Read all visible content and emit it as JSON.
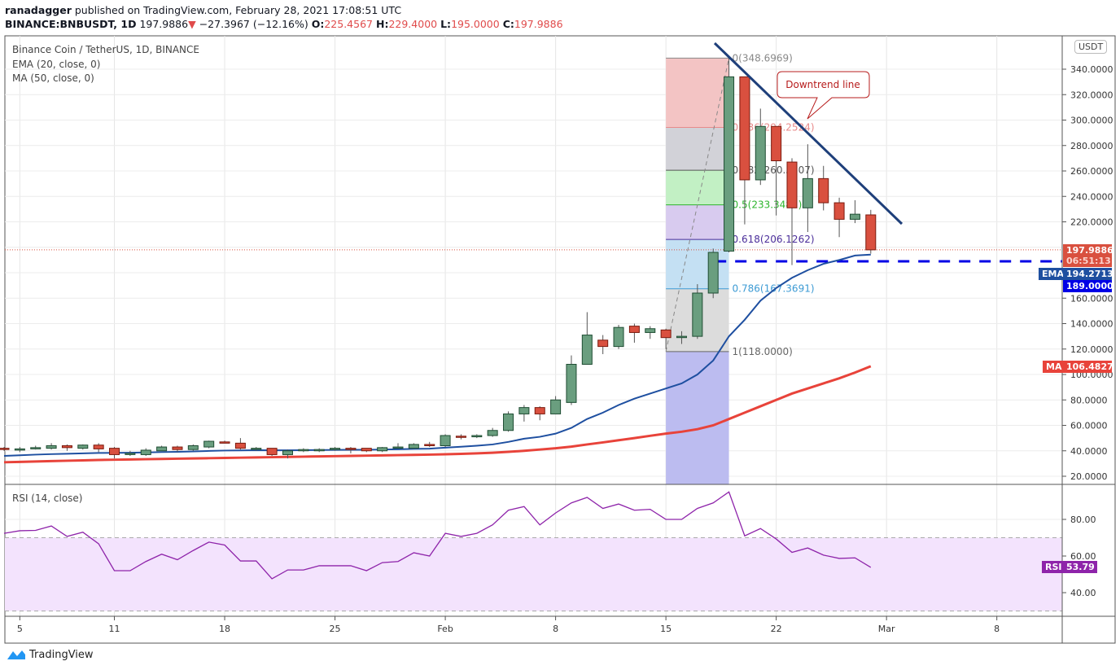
{
  "header": {
    "author": "ranadagger",
    "published": "published on TradingView.com, February 28, 2021 17:08:51 UTC",
    "symbol": "BINANCE:BNBUSDT, 1D",
    "last": "197.9886",
    "change": "−27.3967 (−12.16%)",
    "o_label": "O:",
    "o": "225.4567",
    "h_label": "H:",
    "h": "229.4000",
    "l_label": "L:",
    "l": "195.0000",
    "c_label": "C:",
    "c": "197.9886"
  },
  "legend": {
    "title": "Binance Coin / TetherUS, 1D, BINANCE",
    "ema": "EMA (20, close, 0)",
    "ma": "MA (50, close, 0)",
    "rsi": "RSI (14, close)"
  },
  "axis": {
    "currency": "USDT",
    "price_ticks": [
      "340.0000",
      "320.0000",
      "300.0000",
      "280.0000",
      "260.0000",
      "240.0000",
      "220.0000",
      "160.0000",
      "140.0000",
      "120.0000",
      "100.0000",
      "80.0000",
      "60.0000",
      "40.0000",
      "20.0000"
    ],
    "rsi_ticks": [
      "80.00",
      "60.00",
      "40.00"
    ],
    "time_ticks": [
      "5",
      "11",
      "18",
      "25",
      "Feb",
      "8",
      "15",
      "22",
      "Mar",
      "8"
    ]
  },
  "tags": {
    "price": "197.9886",
    "countdown": "06:51:13",
    "ema_label": "EMA",
    "ema": "194.2713",
    "level": "189.0000",
    "ma_label": "MA",
    "ma": "106.4827",
    "rsi_label": "RSI",
    "rsi": "53.79"
  },
  "annotation": "Downtrend line",
  "fib": [
    {
      "label": "0(348.6969)",
      "value": 348.6969
    },
    {
      "label": "0.236(294.2524)",
      "value": 294.2524
    },
    {
      "label": "0.382(260.5707)",
      "value": 260.5707
    },
    {
      "label": "0.5(233.3485)",
      "value": 233.3485
    },
    {
      "label": "0.618(206.1262)",
      "value": 206.1262
    },
    {
      "label": "0.786(167.3691)",
      "value": 167.3691
    },
    {
      "label": "1(118.0000)",
      "value": 118.0
    }
  ],
  "brand": "TradingView",
  "colors": {
    "up": "#6a9e7f",
    "down": "#d9503f",
    "ema": "#1e4fa0",
    "ma": "#e8433a",
    "rsi": "#8e24aa",
    "level": "#0000e6"
  },
  "chart_data": {
    "type": "candlestick",
    "title": "Binance Coin / TetherUS, 1D, BINANCE",
    "ylim": [
      15,
      360
    ],
    "start_date": "2021-01-04",
    "ohlc": [
      [
        42,
        43,
        40,
        41
      ],
      [
        41,
        43,
        39,
        41.5
      ],
      [
        41.5,
        44,
        41,
        42.5
      ],
      [
        42,
        46,
        41,
        44
      ],
      [
        44,
        45,
        40,
        42.5
      ],
      [
        42,
        45,
        41,
        44.5
      ],
      [
        44.5,
        46,
        39,
        41.5
      ],
      [
        42,
        43,
        34,
        37
      ],
      [
        37.5,
        40,
        36,
        38
      ],
      [
        37,
        42,
        36,
        40.5
      ],
      [
        40,
        44,
        40,
        43
      ],
      [
        43,
        44,
        39,
        41
      ],
      [
        41,
        45,
        40,
        44
      ],
      [
        43,
        48,
        42,
        47.5
      ],
      [
        47,
        48,
        46,
        46
      ],
      [
        46,
        50,
        41,
        42
      ],
      [
        42,
        43,
        40,
        42
      ],
      [
        42,
        42,
        36,
        37
      ],
      [
        37,
        41,
        34,
        40
      ],
      [
        40,
        42,
        39,
        41
      ],
      [
        40,
        42,
        39,
        41
      ],
      [
        41,
        43,
        40,
        42
      ],
      [
        42,
        43,
        38,
        41
      ],
      [
        42,
        42,
        39,
        40
      ],
      [
        40,
        43,
        39,
        42.5
      ],
      [
        42.5,
        46,
        42,
        43
      ],
      [
        42,
        46,
        42,
        45
      ],
      [
        45,
        47,
        43,
        44
      ],
      [
        44,
        53,
        43,
        52
      ],
      [
        51.5,
        53,
        49,
        51
      ],
      [
        51,
        53,
        50,
        52
      ],
      [
        52,
        58,
        51,
        56
      ],
      [
        56,
        71,
        55,
        69
      ],
      [
        69,
        76,
        63,
        74
      ],
      [
        74,
        75,
        64,
        69
      ],
      [
        69,
        83,
        69,
        80
      ],
      [
        78,
        115,
        76,
        108
      ],
      [
        108,
        149,
        108,
        131
      ],
      [
        127,
        131,
        116,
        122
      ],
      [
        122,
        139,
        120,
        137
      ],
      [
        138,
        140,
        125,
        133
      ],
      [
        133,
        138,
        128,
        136
      ],
      [
        135,
        136,
        120,
        129
      ],
      [
        129,
        134,
        124,
        130
      ],
      [
        130,
        171,
        128,
        164
      ],
      [
        164,
        199,
        160,
        196
      ],
      [
        197,
        348.7,
        196,
        334
      ],
      [
        334,
        334,
        218,
        253
      ],
      [
        253,
        309,
        249,
        295
      ],
      [
        295,
        295,
        225,
        268
      ],
      [
        267,
        270,
        186,
        231
      ],
      [
        231,
        281,
        212,
        254
      ],
      [
        254,
        264,
        229,
        235
      ],
      [
        235,
        239,
        208,
        222
      ],
      [
        222,
        237,
        219,
        226
      ],
      [
        225.4567,
        229.4,
        195,
        197.9886
      ]
    ],
    "ema20": [
      36,
      36.5,
      37,
      37.4,
      37.7,
      38,
      38.3,
      38.4,
      38.5,
      38.7,
      39,
      39.2,
      39.5,
      39.9,
      40.2,
      40.3,
      40.5,
      40.4,
      40.4,
      40.5,
      40.6,
      40.7,
      40.8,
      40.8,
      41,
      41.2,
      41.5,
      41.7,
      42.5,
      43.2,
      44,
      45,
      47,
      49.5,
      51,
      53.5,
      58,
      65,
      70,
      76,
      81,
      85,
      89,
      93,
      100,
      111,
      130,
      143,
      158,
      168,
      176,
      182,
      187,
      190,
      193.5,
      194.2713
    ],
    "ma50": [
      31,
      31.3,
      31.6,
      31.9,
      32.2,
      32.5,
      32.8,
      33,
      33.2,
      33.4,
      33.6,
      33.8,
      34,
      34.2,
      34.4,
      34.6,
      34.8,
      35,
      35.2,
      35.4,
      35.6,
      35.8,
      36,
      36.2,
      36.4,
      36.6,
      36.8,
      37,
      37.3,
      37.6,
      38,
      38.5,
      39.2,
      40,
      41,
      42,
      43.3,
      45,
      46.6,
      48.3,
      50,
      51.8,
      53.5,
      55,
      57,
      60,
      65,
      70,
      75,
      80,
      85,
      89,
      93,
      97,
      101.5,
      106.4827
    ],
    "rsi14": [
      72.4,
      73.8,
      74,
      76.4,
      70.7,
      73,
      66.7,
      52,
      52,
      57,
      61,
      58,
      63,
      67.6,
      66,
      57.3,
      57.3,
      47.6,
      52.4,
      52.4,
      54.7,
      54.7,
      54.7,
      52,
      56.4,
      57,
      61.8,
      60,
      72.4,
      70.7,
      72.4,
      77,
      85,
      87,
      77,
      83.5,
      89,
      92,
      86,
      88.4,
      85,
      85.5,
      80,
      80,
      86,
      89,
      95,
      71,
      75,
      69.3,
      62,
      64.4,
      60.5,
      58.7,
      59,
      53.79
    ],
    "rsi_bands": [
      30,
      70
    ],
    "horizontal_level": 189.0,
    "current_price": 197.9886
  }
}
